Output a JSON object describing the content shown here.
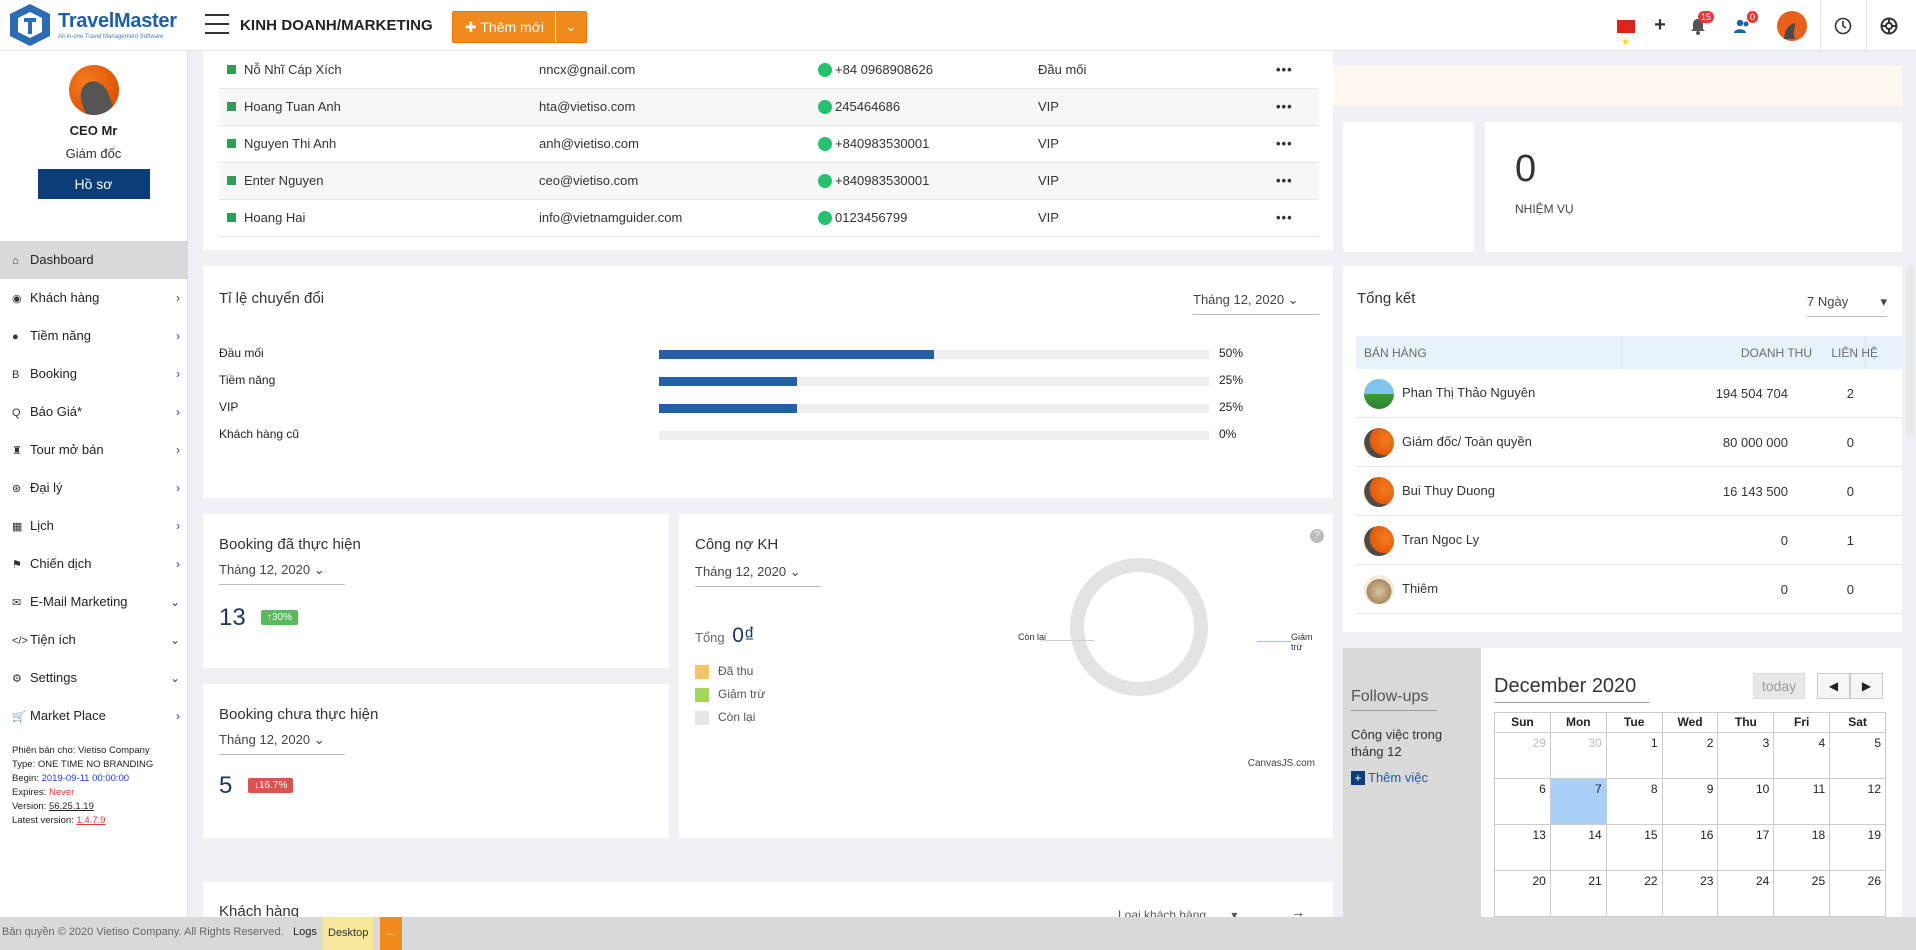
{
  "app": {
    "logo_name": "TravelMaster",
    "logo_tagline": "All-in-one Travel Management Software"
  },
  "header": {
    "module_title": "KINH DOANH/MARKETING",
    "new_button": "Thêm mới",
    "notif_count": "15",
    "user_notif_count": "0",
    "icons": [
      "vn-flag-icon",
      "plus-icon",
      "bell-icon",
      "users-icon",
      "avatar",
      "clock-icon",
      "lifebuoy-icon"
    ]
  },
  "sidebar": {
    "user_name": "CEO Mr",
    "user_role": "Giám đốc",
    "profile_button": "Hồ sơ",
    "items": [
      {
        "label": "Dashboard",
        "icon": "⌂",
        "arrow": ""
      },
      {
        "label": "Khách hàng",
        "icon": "◉",
        "arrow": "›"
      },
      {
        "label": "Tiềm năng",
        "icon": "●",
        "arrow": "›"
      },
      {
        "label": "Booking",
        "icon": "B",
        "arrow": "›"
      },
      {
        "label": "Báo Giá*",
        "icon": "Q",
        "arrow": "›"
      },
      {
        "label": "Tour mở bán",
        "icon": "♜",
        "arrow": "›"
      },
      {
        "label": "Đại lý",
        "icon": "⊛",
        "arrow": "›"
      },
      {
        "label": "Lịch",
        "icon": "▦",
        "arrow": "›"
      },
      {
        "label": "Chiến dịch",
        "icon": "⚑",
        "arrow": "›"
      },
      {
        "label": "E-Mail Marketing",
        "icon": "✉",
        "arrow": "⌄"
      },
      {
        "label": "Tiện ích",
        "icon": "</>",
        "arrow": "⌄"
      },
      {
        "label": "Settings",
        "icon": "⚙",
        "arrow": "⌄"
      },
      {
        "label": "Market Place",
        "icon": "🛒",
        "arrow": "›"
      }
    ],
    "version": {
      "line1": "Phiên bản cho: Vietiso Company",
      "line2": "Type: ONE TIME NO BRANDING",
      "begin_label": "Begin: ",
      "begin_value": "2019-09-11 00:00:00",
      "expires_label": "Expires: ",
      "expires_value": "Never",
      "version_label": "Version: ",
      "version_value": "56.25.1.19",
      "latest_label": "Latest version: ",
      "latest_value": "1.4.7.9"
    }
  },
  "customers": [
    {
      "name": "Nỗ Nhĩ Cáp Xích",
      "email": "nncx@gnail.com",
      "phone": "+84 0968908626",
      "type": "Đầu mối"
    },
    {
      "name": "Hoang Tuan Anh",
      "email": "hta@vietiso.com",
      "phone": "245464686",
      "type": "VIP"
    },
    {
      "name": "Nguyen Thi Anh",
      "email": "anh@vietiso.com",
      "phone": "+840983530001",
      "type": "VIP"
    },
    {
      "name": "Enter Nguyen",
      "email": "ceo@vietiso.com",
      "phone": "+840983530001",
      "type": "VIP"
    },
    {
      "name": "Hoang Hai",
      "email": "info@vietnamguider.com",
      "phone": "0123456799",
      "type": "VIP"
    }
  ],
  "tasks": {
    "count": "0",
    "label": "NHIỆM VỤ"
  },
  "conversion": {
    "title": "Tỉ lệ chuyển đổi",
    "period": "Tháng 12, 2020",
    "rows": [
      {
        "label": "Đầu mối",
        "value": 0.5,
        "pct": "50%"
      },
      {
        "label": "Tiềm năng",
        "value": 0.25,
        "pct": "25%"
      },
      {
        "label": "VIP",
        "value": 0.25,
        "pct": "25%"
      },
      {
        "label": "Khách hàng cũ",
        "value": 0,
        "pct": "0%"
      }
    ]
  },
  "summary": {
    "title": "Tổng kết",
    "period": "7 Ngày",
    "col_sales": "BÁN HÀNG",
    "col_revenue": "DOANH THU",
    "col_contacts": "LIÊN HỆ",
    "rows": [
      {
        "name": "Phan Thị Thảo Nguyên",
        "revenue": "194 504 704",
        "contacts": "2",
        "avatar": "landscape"
      },
      {
        "name": "Giám đốc/ Toàn quyền",
        "revenue": "80 000 000",
        "contacts": "0",
        "avatar": "logo"
      },
      {
        "name": "Bui Thuy Duong",
        "revenue": "16 143 500",
        "contacts": "0",
        "avatar": "logo"
      },
      {
        "name": "Tran Ngoc Ly",
        "revenue": "0",
        "contacts": "1",
        "avatar": "logo"
      },
      {
        "name": "Thiêm",
        "revenue": "0",
        "contacts": "0",
        "avatar": "monkey"
      }
    ]
  },
  "booking_done": {
    "title": "Booking đã thực hiện",
    "period": "Tháng 12, 2020",
    "count": "13",
    "change": "30%",
    "direction": "up"
  },
  "booking_pending": {
    "title": "Booking chưa thực hiện",
    "period": "Tháng 12, 2020",
    "count": "5",
    "change": "16.7%",
    "direction": "down"
  },
  "debt": {
    "title": "Công nợ KH",
    "period": "Tháng 12, 2020",
    "total_label": "Tổng",
    "total_value": "0₫",
    "legend": [
      {
        "label": "Đã thu",
        "color": "#f6c26b"
      },
      {
        "label": "Giảm trừ",
        "color": "#a4d65e"
      },
      {
        "label": "Còn lại",
        "color": "#e6e6e6"
      }
    ],
    "label_left": "Còn lại",
    "label_right": "Giảm trừ",
    "credit": "CanvasJS.com"
  },
  "followups": {
    "title": "Follow-ups",
    "desc": "Công việc trong tháng 12",
    "add": "Thêm việc"
  },
  "calendar": {
    "month": "December 2020",
    "today_btn": "today",
    "days": [
      "Sun",
      "Mon",
      "Tue",
      "Wed",
      "Thu",
      "Fri",
      "Sat"
    ],
    "weeks": [
      [
        "29",
        "30",
        "1",
        "2",
        "3",
        "4",
        "5"
      ],
      [
        "6",
        "7",
        "8",
        "9",
        "10",
        "11",
        "12"
      ],
      [
        "13",
        "14",
        "15",
        "16",
        "17",
        "18",
        "19"
      ],
      [
        "20",
        "21",
        "22",
        "23",
        "24",
        "25",
        "26"
      ]
    ],
    "today_index": [
      1,
      1
    ]
  },
  "customers_section": {
    "title": "Khách hàng",
    "filter": "Loại khách hàng"
  },
  "footer": {
    "copyright": "Bản quyền © 2020 Vietiso Company. All Rights Reserved.",
    "logs": "Logs",
    "desktop": "Desktop",
    "more": "..."
  },
  "colors": {
    "primary": "#0b3d78",
    "accent": "#f08a1c",
    "bar": "#2660a4",
    "success": "#5cb85c",
    "danger": "#d9534f"
  }
}
